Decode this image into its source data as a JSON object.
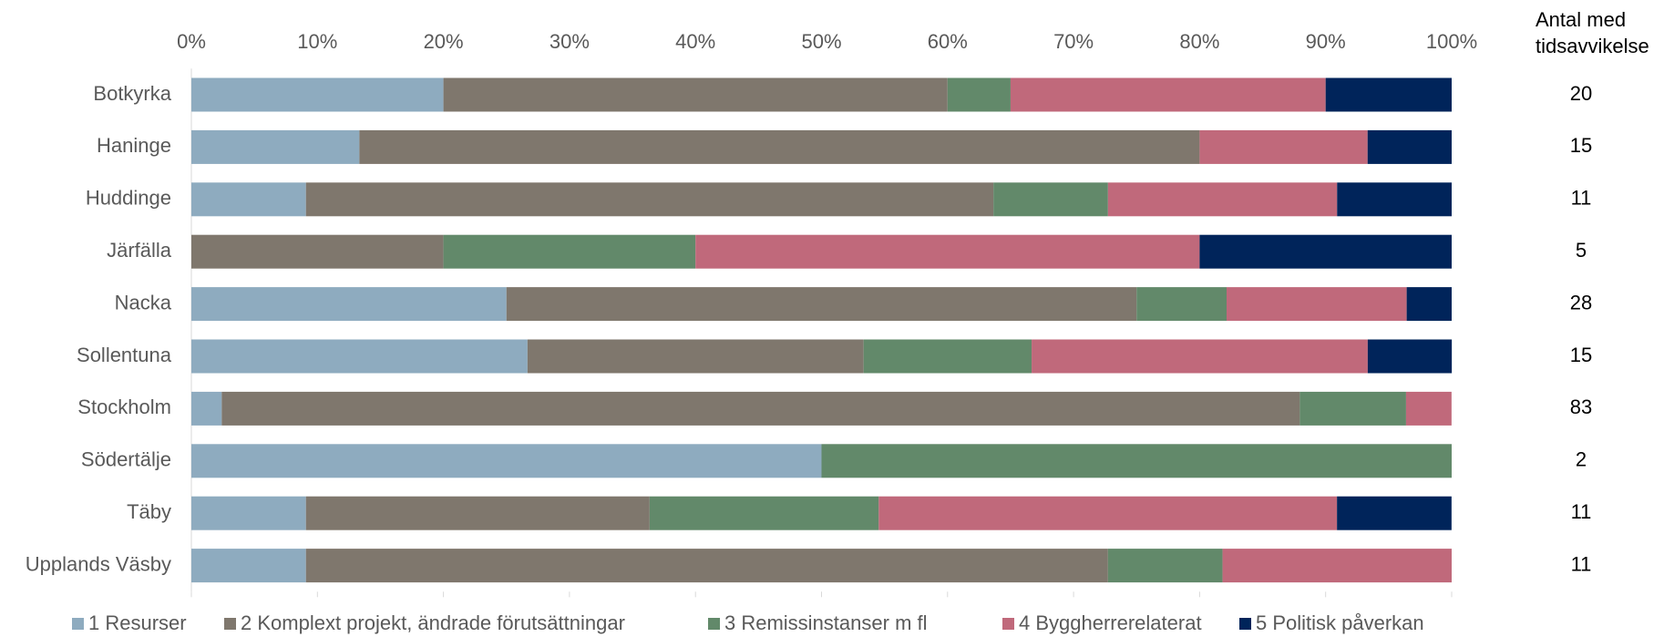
{
  "chart_data": {
    "type": "stacked-bar-horizontal",
    "categories": [
      "Botkyrka",
      "Haninge",
      "Huddinge",
      "Järfälla",
      "Nacka",
      "Sollentuna",
      "Stockholm",
      "Södertälje",
      "Täby",
      "Upplands Väsby"
    ],
    "series": [
      {
        "name": "1 Resurser",
        "color": "#8eabbf",
        "values": [
          20,
          13.33,
          9.09,
          0,
          25,
          26.67,
          2.41,
          50,
          9.09,
          9.09
        ]
      },
      {
        "name": "2 Komplext projekt, ändrade förutsättningar",
        "color": "#7f776d",
        "values": [
          40,
          66.67,
          54.55,
          20,
          50,
          26.67,
          85.54,
          0,
          27.27,
          63.64
        ]
      },
      {
        "name": "3 Remissinstanser m fl",
        "color": "#62896a",
        "values": [
          5,
          0,
          9.09,
          20,
          7.14,
          13.33,
          8.43,
          50,
          18.18,
          9.09
        ]
      },
      {
        "name": "4 Byggherrerelaterat",
        "color": "#c0697b",
        "values": [
          25,
          13.33,
          18.18,
          40,
          14.29,
          26.67,
          3.61,
          0,
          36.36,
          18.18
        ]
      },
      {
        "name": "5 Politisk påverkan",
        "color": "#00245a",
        "values": [
          10,
          6.67,
          9.09,
          20,
          3.57,
          6.67,
          0,
          0,
          9.09,
          0
        ]
      }
    ],
    "xlim": [
      0,
      100
    ],
    "xticks": [
      {
        "value": 0,
        "label": "0%"
      },
      {
        "value": 10,
        "label": "10%"
      },
      {
        "value": 20,
        "label": "20%"
      },
      {
        "value": 30,
        "label": "30%"
      },
      {
        "value": 40,
        "label": "40%"
      },
      {
        "value": 50,
        "label": "50%"
      },
      {
        "value": 60,
        "label": "60%"
      },
      {
        "value": 70,
        "label": "70%"
      },
      {
        "value": 80,
        "label": "80%"
      },
      {
        "value": 90,
        "label": "90%"
      },
      {
        "value": 100,
        "label": "100%"
      }
    ],
    "count_header": [
      "Antal med",
      "tidsavvikelse"
    ],
    "counts": [
      20,
      15,
      11,
      5,
      28,
      15,
      83,
      2,
      11,
      11
    ],
    "legend": "bottom"
  }
}
